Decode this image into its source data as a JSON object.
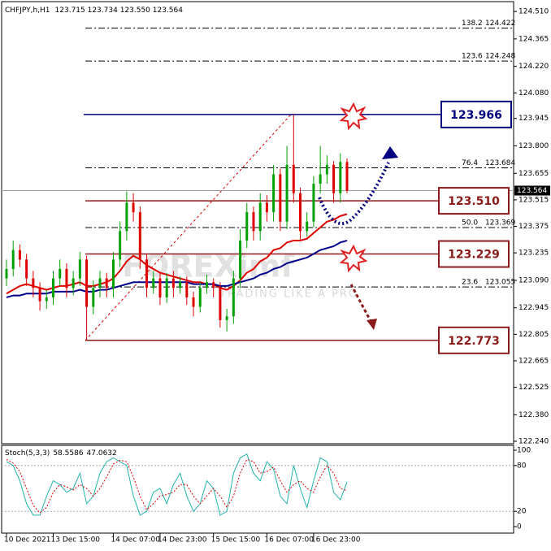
{
  "chart_data": [
    {
      "type": "candlestick",
      "title": "CHFJPY,h,H1",
      "ohlc_label": "123.715 123.734 123.550 123.564",
      "watermark": "FOREXimf",
      "watermark_sub": "TRADING LIKE A PRO",
      "categories": [
        "10 Dec 2021",
        null,
        null,
        null,
        null,
        null,
        null,
        "13 Dec 15:00",
        null,
        null,
        null,
        null,
        null,
        null,
        null,
        null,
        "14 Dec 07:00",
        null,
        null,
        null,
        null,
        null,
        null,
        "14 Dec 23:00",
        null,
        null,
        null,
        null,
        null,
        null,
        null,
        "15 Dec 15:00",
        null,
        null,
        null,
        null,
        null,
        null,
        null,
        "16 Dec 07:00",
        null,
        null,
        null,
        null,
        null,
        null,
        "16 Dec 23:00",
        null,
        null,
        null,
        null,
        null
      ],
      "open": [
        123.1,
        123.15,
        123.25,
        123.2,
        123.1,
        123.05,
        122.98,
        123.0,
        123.1,
        123.15,
        123.05,
        123.1,
        123.2,
        122.95,
        123.05,
        123.1,
        123.05,
        123.2,
        123.35,
        123.5,
        123.45,
        123.2,
        123.05,
        123.1,
        123.0,
        123.1,
        123.05,
        123.08,
        123.0,
        122.95,
        123.05,
        123.08,
        123.05,
        122.88,
        122.9,
        123.1,
        123.3,
        123.45,
        123.35,
        123.5,
        123.45,
        123.65,
        123.4,
        123.7,
        123.55,
        123.35,
        123.4,
        123.6,
        123.65,
        123.7,
        123.55,
        123.715
      ],
      "high": [
        123.2,
        123.3,
        123.28,
        123.23,
        123.14,
        123.08,
        123.04,
        123.14,
        123.2,
        123.18,
        123.14,
        123.24,
        123.22,
        123.09,
        123.14,
        123.13,
        123.24,
        123.4,
        123.56,
        123.55,
        123.48,
        123.23,
        123.14,
        123.13,
        123.13,
        123.14,
        123.11,
        123.11,
        123.03,
        123.08,
        123.12,
        123.1,
        123.08,
        122.94,
        123.14,
        123.36,
        123.5,
        123.48,
        123.55,
        123.54,
        123.7,
        123.68,
        123.8,
        123.966,
        123.58,
        123.45,
        123.64,
        123.8,
        123.75,
        123.72,
        123.76,
        123.734
      ],
      "low": [
        123.06,
        123.11,
        123.16,
        123.06,
        123.0,
        122.93,
        122.94,
        122.96,
        123.06,
        123.0,
        123.01,
        123.06,
        122.773,
        122.91,
        123.0,
        123.0,
        123.0,
        123.16,
        123.3,
        123.4,
        123.15,
        123.0,
        123.02,
        122.96,
        122.97,
        123.0,
        123.02,
        122.96,
        122.9,
        122.92,
        123.02,
        123.0,
        122.84,
        122.82,
        122.86,
        123.05,
        123.26,
        123.3,
        123.3,
        123.4,
        123.4,
        123.35,
        123.36,
        123.5,
        123.3,
        123.32,
        123.37,
        123.55,
        123.6,
        123.5,
        123.5,
        123.55
      ],
      "close": [
        123.15,
        123.25,
        123.2,
        123.1,
        123.05,
        122.98,
        123.0,
        123.1,
        123.15,
        123.05,
        123.1,
        123.2,
        122.95,
        123.05,
        123.1,
        123.05,
        123.2,
        123.35,
        123.5,
        123.45,
        123.2,
        123.05,
        123.1,
        123.0,
        123.1,
        123.05,
        123.08,
        123.0,
        122.95,
        123.05,
        123.08,
        123.05,
        122.88,
        122.9,
        123.1,
        123.3,
        123.45,
        123.35,
        123.5,
        123.45,
        123.65,
        123.4,
        123.7,
        123.55,
        123.35,
        123.4,
        123.6,
        123.65,
        123.7,
        123.55,
        123.715,
        123.564
      ],
      "up_color": "#00a000",
      "down_color": "#e00000",
      "overlays": [
        {
          "color": "#e00000",
          "values": [
            123.02,
            123.04,
            123.06,
            123.07,
            123.06,
            123.05,
            123.04,
            123.05,
            123.06,
            123.06,
            123.07,
            123.08,
            123.06,
            123.06,
            123.07,
            123.08,
            123.1,
            123.14,
            123.19,
            123.22,
            123.2,
            123.17,
            123.15,
            123.13,
            123.12,
            123.11,
            123.1,
            123.09,
            123.08,
            123.08,
            123.07,
            123.07,
            123.05,
            123.04,
            123.06,
            123.09,
            123.13,
            123.15,
            123.19,
            123.21,
            123.25,
            123.26,
            123.29,
            123.3,
            123.3,
            123.31,
            123.34,
            123.37,
            123.4,
            123.41,
            123.43,
            123.44
          ]
        },
        {
          "color": "#00008b",
          "values": [
            123.0,
            123.01,
            123.01,
            123.02,
            123.02,
            123.02,
            123.02,
            123.03,
            123.03,
            123.03,
            123.03,
            123.04,
            123.03,
            123.03,
            123.04,
            123.04,
            123.05,
            123.06,
            123.07,
            123.08,
            123.08,
            123.08,
            123.08,
            123.08,
            123.08,
            123.08,
            123.08,
            123.08,
            123.07,
            123.07,
            123.07,
            123.07,
            123.06,
            123.06,
            123.07,
            123.08,
            123.09,
            123.1,
            123.12,
            123.13,
            123.15,
            123.16,
            123.18,
            123.19,
            123.2,
            123.21,
            123.23,
            123.25,
            123.26,
            123.27,
            123.29,
            123.3
          ]
        }
      ],
      "current_price": 123.564,
      "levels": [
        {
          "value": 123.966,
          "color": "#000080"
        },
        {
          "value": 123.51,
          "label": "123.510",
          "color": "#8b1a1a"
        },
        {
          "value": 123.229,
          "color": "#8b1a1a"
        },
        {
          "value": 122.773,
          "color": "#8b1a1a"
        }
      ],
      "fib": [
        {
          "ratio": "138.2",
          "price": 124.422
        },
        {
          "ratio": "123.6",
          "price": 124.248
        },
        {
          "ratio": "76.4",
          "price": 123.684
        },
        {
          "ratio": "50.0",
          "price": 123.369
        },
        {
          "ratio": "23.6",
          "price": 123.055
        }
      ],
      "ylim": [
        122.227,
        124.562
      ],
      "yticks": [
        {
          "value": 124.51,
          "label": "124.510"
        },
        124.365,
        {
          "value": 124.22,
          "label": "124.220"
        },
        {
          "value": 124.08,
          "label": "124.080"
        },
        123.945,
        {
          "value": 123.8,
          "label": "123.800"
        },
        123.655,
        123.515,
        123.375,
        123.235,
        {
          "value": 123.09,
          "label": "123.090"
        },
        122.945,
        122.805,
        122.665,
        122.525,
        {
          "value": 122.38,
          "label": "122.380"
        },
        {
          "value": 122.24,
          "label": "122.240"
        }
      ]
    },
    {
      "type": "line",
      "title": "Stoch(5,3,3)",
      "series": [
        {
          "color": "#20b2aa",
          "values": [
            85,
            80,
            60,
            30,
            15,
            15,
            40,
            60,
            55,
            45,
            50,
            70,
            30,
            40,
            70,
            85,
            90,
            85,
            80,
            40,
            15,
            20,
            45,
            50,
            30,
            55,
            70,
            40,
            20,
            30,
            60,
            50,
            15,
            20,
            70,
            90,
            95,
            70,
            60,
            85,
            75,
            40,
            30,
            80,
            50,
            25,
            60,
            90,
            85,
            45,
            35,
            58.5586
          ]
        },
        {
          "color": "#e00000",
          "dash": true,
          "values": [
            88,
            83,
            72,
            50,
            28,
            18,
            25,
            45,
            55,
            52,
            48,
            55,
            50,
            40,
            50,
            65,
            82,
            87,
            85,
            65,
            40,
            22,
            30,
            40,
            42,
            45,
            55,
            55,
            40,
            30,
            40,
            50,
            40,
            25,
            40,
            70,
            88,
            85,
            70,
            72,
            78,
            60,
            45,
            55,
            60,
            50,
            45,
            65,
            80,
            70,
            50,
            47.0632
          ]
        }
      ],
      "ylim": [
        0,
        100
      ],
      "yticks": [
        0,
        20,
        80,
        100
      ]
    }
  ]
}
